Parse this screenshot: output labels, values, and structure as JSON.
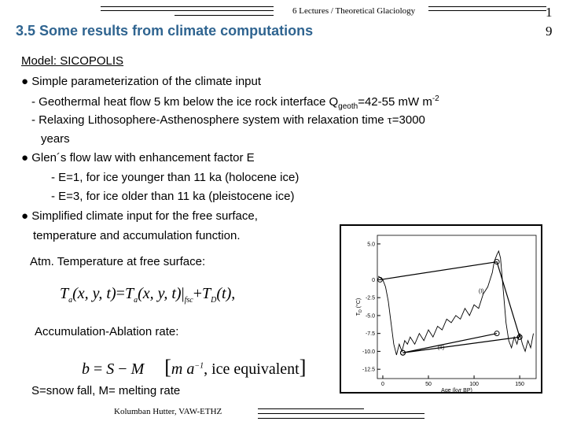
{
  "header": {
    "running_title": "6 Lectures / Theoretical Glaciology",
    "slide_number": [
      "1",
      "9"
    ]
  },
  "title": "3.5 Some results from climate computations",
  "body": {
    "model": "Model: SICOPOLIS",
    "bullet_1": "● Simple parameterization of the climate input",
    "geothermal": {
      "pre": "- Geothermal heat flow 5 km below the ice rock interface Q",
      "sub": "geoth",
      "mid": "=42-55 mW m",
      "sup": "-2"
    },
    "relaxing": {
      "pre": "- Relaxing Lithosophere-Asthenosphere system with relaxation time ",
      "symbol": "τ",
      "post": "=3000"
    },
    "relaxing_cont": "years",
    "bullet_2": "● Glen´s flow law with enhancement factor E",
    "e1": "- E=1, for ice younger than 11 ka (holocene ice)",
    "e3": "- E=3, for ice older than 11 ka (pleistocene ice)",
    "bullet_3": "● Simplified climate input for the free surface,",
    "bullet_3_cont": "temperature and accumulation function.",
    "temp_label": "Atm. Temperature at free surface:",
    "formula_temperature": [
      "T",
      "a",
      "(x, y, t)",
      "=",
      "T",
      "a",
      "(x, y, t)",
      "fsc",
      "+",
      "T",
      "D",
      "(t)",
      ","
    ],
    "accum_label": "Accumulation-Ablation rate:",
    "formula_accumulation": [
      "b",
      "=",
      "S",
      "−",
      "M",
      "m a",
      "−1",
      ", ice equivalent"
    ],
    "snow": "S=snow fall, M= melting rate"
  },
  "figure": {
    "type": "line",
    "y_label": {
      "main": "T",
      "sub": "D",
      "unit": " (°C)"
    },
    "x_label": "Age (kyr BP)",
    "xlim": [
      -6,
      168
    ],
    "ylim": [
      -13.8,
      6.2
    ],
    "xticks": [
      0,
      50,
      100,
      150
    ],
    "yticks": [
      {
        "value": 5,
        "label": "5.0"
      },
      0,
      {
        "value": -2.5,
        "label": "-2.5"
      },
      {
        "value": -5,
        "label": "-5.0"
      },
      {
        "value": -7.5,
        "label": "-7.5"
      },
      {
        "value": -10,
        "label": "-10.0"
      },
      {
        "value": -12.5,
        "label": "-12.5"
      }
    ],
    "x": [
      -5,
      0,
      3,
      6,
      9,
      12,
      15,
      18,
      21,
      24,
      27,
      30,
      35,
      40,
      45,
      50,
      55,
      60,
      65,
      70,
      75,
      80,
      85,
      90,
      95,
      100,
      105,
      110,
      115,
      120,
      122,
      125,
      127,
      129,
      131,
      133,
      135,
      138,
      141,
      144,
      147,
      150,
      153,
      156,
      159,
      162,
      165
    ],
    "values": [
      0.5,
      0,
      -1,
      -3,
      -6,
      -9,
      -10.5,
      -9,
      -10,
      -8.5,
      -9,
      -8,
      -9,
      -7.5,
      -8.5,
      -7,
      -8,
      -6.5,
      -7,
      -5.5,
      -6,
      -5,
      -5.5,
      -4,
      -5,
      -3.5,
      -4,
      -2,
      -1,
      1,
      2.5,
      3.5,
      4,
      3,
      0,
      -3,
      -6,
      -8.5,
      -9.5,
      -8,
      -9,
      -7.5,
      -9,
      -10,
      -8.5,
      -9.5,
      -7.5
    ],
    "lines": [
      {
        "x": [
          -3,
          125,
          150
        ],
        "values": [
          0,
          2.5,
          -8
        ]
      },
      {
        "x": [
          22,
          125
        ],
        "values": [
          -10.2,
          -7.5
        ]
      },
      {
        "x": [
          22,
          150
        ],
        "values": [
          -10.2,
          -8
        ]
      }
    ],
    "annotations": [
      {
        "label": "(I)",
        "x": 105,
        "y": -1.8
      },
      {
        "label": "(II)",
        "x": 60,
        "y": -9.7
      }
    ]
  },
  "footer": "Kolumban Hutter, VAW-ETHZ"
}
